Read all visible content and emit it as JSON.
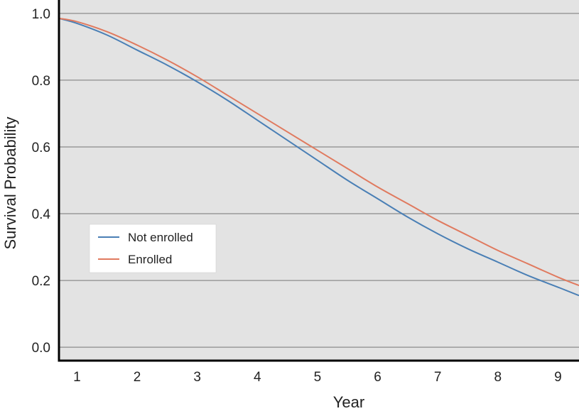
{
  "chart_data": {
    "type": "line",
    "title": "",
    "xlabel": "Year",
    "ylabel": "Survival Probability",
    "x": [
      0.7,
      1,
      1.5,
      2,
      2.5,
      3,
      3.5,
      4,
      4.5,
      5,
      5.5,
      6,
      6.5,
      7,
      7.5,
      8,
      8.5,
      9,
      9.35
    ],
    "xlim": [
      0.7,
      9.35
    ],
    "ylim": [
      -0.04,
      1.04
    ],
    "xticks": [
      "1",
      "2",
      "3",
      "4",
      "5",
      "6",
      "7",
      "8",
      "9"
    ],
    "yticks": [
      "0.0",
      "0.2",
      "0.4",
      "0.6",
      "0.8",
      "1.0"
    ],
    "grid": "horizontal",
    "legend_position": "lower-left",
    "series": [
      {
        "name": "Not enrolled",
        "color": "#4a7fb5",
        "values": [
          0.985,
          0.97,
          0.935,
          0.89,
          0.845,
          0.795,
          0.74,
          0.68,
          0.62,
          0.56,
          0.5,
          0.445,
          0.39,
          0.34,
          0.295,
          0.255,
          0.215,
          0.18,
          0.155
        ]
      },
      {
        "name": "Enrolled",
        "color": "#e07a5f",
        "values": [
          0.985,
          0.975,
          0.945,
          0.905,
          0.86,
          0.81,
          0.755,
          0.7,
          0.645,
          0.59,
          0.535,
          0.48,
          0.43,
          0.38,
          0.335,
          0.29,
          0.25,
          0.21,
          0.185
        ]
      }
    ]
  }
}
